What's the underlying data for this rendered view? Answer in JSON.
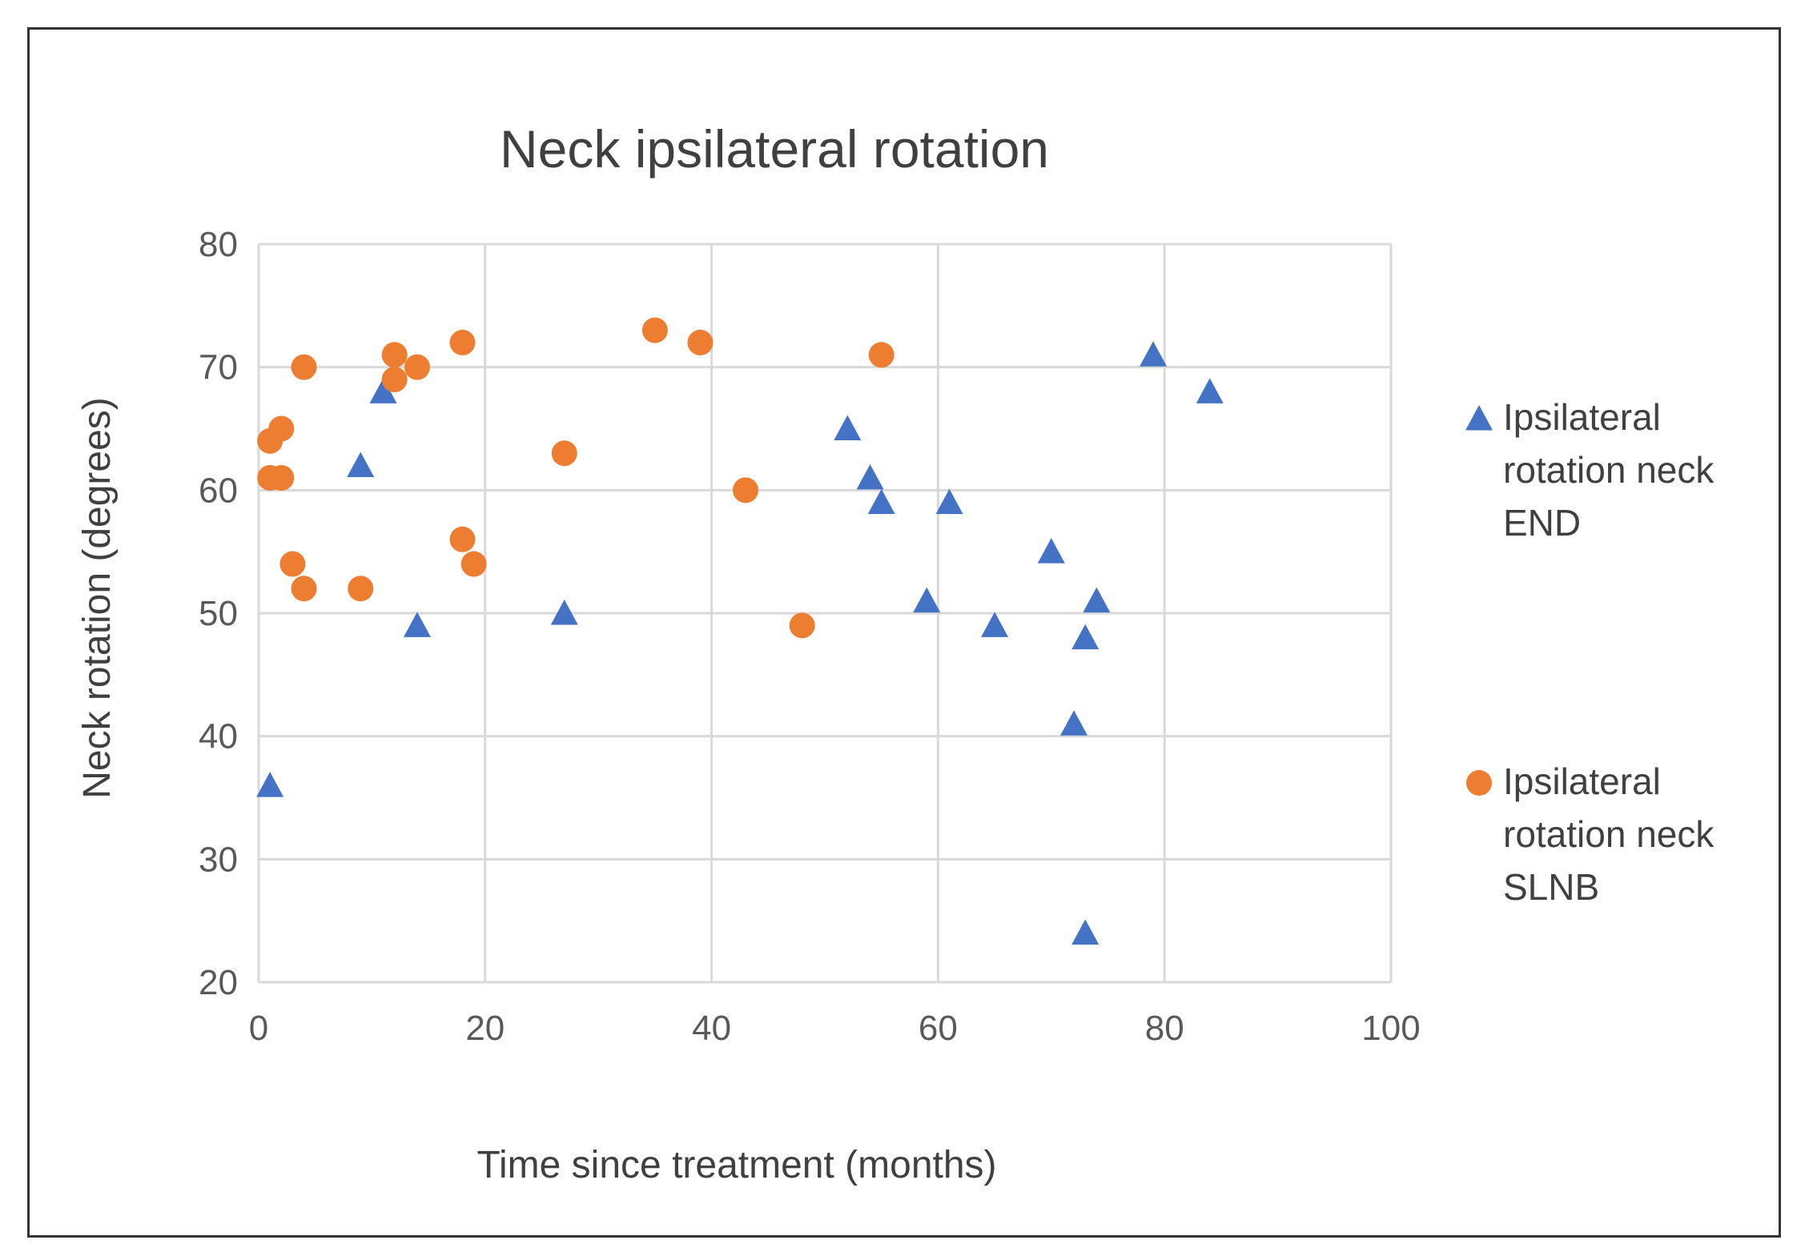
{
  "chart_data": {
    "type": "scatter",
    "title": "Neck ipsilateral rotation",
    "xlabel": "Time since treatment (months)",
    "ylabel": "Neck rotation (degrees)",
    "xlim": [
      0,
      100
    ],
    "ylim": [
      20,
      80
    ],
    "xticks": [
      0,
      20,
      40,
      60,
      80,
      100
    ],
    "yticks": [
      20,
      30,
      40,
      50,
      60,
      70,
      80
    ],
    "grid": true,
    "legend_position": "right",
    "series": [
      {
        "name": "Ipsilateral rotation neck END",
        "legend_lines": [
          "Ipsilateral",
          "rotation neck",
          "END"
        ],
        "marker": "triangle",
        "color": "#4472c4",
        "points": [
          [
            1,
            36
          ],
          [
            9,
            62
          ],
          [
            11,
            68
          ],
          [
            14,
            49
          ],
          [
            27,
            50
          ],
          [
            52,
            65
          ],
          [
            54,
            61
          ],
          [
            55,
            59
          ],
          [
            59,
            51
          ],
          [
            61,
            59
          ],
          [
            65,
            49
          ],
          [
            70,
            55
          ],
          [
            72,
            41
          ],
          [
            73,
            48
          ],
          [
            73,
            24
          ],
          [
            74,
            51
          ],
          [
            79,
            71
          ],
          [
            84,
            68
          ]
        ]
      },
      {
        "name": "Ipsilateral rotation neck SLNB",
        "legend_lines": [
          "Ipsilateral",
          "rotation neck",
          "SLNB"
        ],
        "marker": "circle",
        "color": "#ed7d31",
        "points": [
          [
            1,
            64
          ],
          [
            1,
            61
          ],
          [
            2,
            65
          ],
          [
            2,
            61
          ],
          [
            3,
            54
          ],
          [
            4,
            70
          ],
          [
            4,
            52
          ],
          [
            9,
            52
          ],
          [
            12,
            71
          ],
          [
            12,
            69
          ],
          [
            14,
            70
          ],
          [
            18,
            72
          ],
          [
            18,
            56
          ],
          [
            19,
            54
          ],
          [
            27,
            63
          ],
          [
            35,
            73
          ],
          [
            39,
            72
          ],
          [
            43,
            60
          ],
          [
            48,
            49
          ],
          [
            55,
            71
          ]
        ]
      }
    ]
  }
}
